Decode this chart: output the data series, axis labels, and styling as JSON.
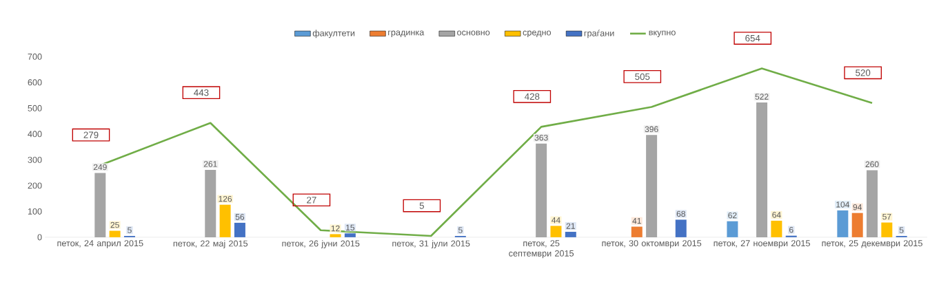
{
  "chart_data": {
    "type": "bar",
    "categories": [
      "петок, 24 април 2015",
      "петок, 22 мај 2015",
      "петок, 26 јуни 2015",
      "петок, 31 јули 2015",
      "петок, 25 септември 2015",
      "петок, 30 октомври 2015",
      "петок, 27 ноември 2015",
      "петок, 25 декември 2015"
    ],
    "series": [
      {
        "name": "факултети",
        "color": "#5b9bd5",
        "values": [
          0,
          0,
          0,
          0,
          0,
          0,
          62,
          104
        ],
        "value_labels": [
          null,
          null,
          null,
          null,
          null,
          null,
          "62",
          "104"
        ]
      },
      {
        "name": "градинка",
        "color": "#ed7d31",
        "values": [
          0,
          0,
          0,
          0,
          0,
          41,
          0,
          94
        ],
        "value_labels": [
          null,
          null,
          null,
          null,
          null,
          "41",
          null,
          "94"
        ]
      },
      {
        "name": "основно",
        "color": "#a5a5a5",
        "values": [
          249,
          261,
          0,
          0,
          363,
          396,
          522,
          260
        ],
        "value_labels": [
          "249",
          "261",
          null,
          null,
          "363",
          "396",
          "522",
          "260"
        ]
      },
      {
        "name": "средно",
        "color": "#ffc000",
        "values": [
          25,
          126,
          12,
          0,
          44,
          0,
          64,
          57
        ],
        "value_labels": [
          "25",
          "126",
          "12",
          null,
          "44",
          null,
          "64",
          "57"
        ]
      },
      {
        "name": "граѓани",
        "color": "#4472c4",
        "values": [
          5,
          56,
          15,
          5,
          21,
          68,
          6,
          5
        ],
        "value_labels": [
          "5",
          "56",
          "15",
          "5",
          "21",
          "68",
          "6",
          "5"
        ]
      },
      {
        "name": "вкупно",
        "type": "line",
        "color": "#70ad47",
        "values": [
          279,
          443,
          27,
          5,
          428,
          505,
          654,
          520
        ],
        "value_labels": [
          "279",
          "443",
          "27",
          "5",
          "428",
          "505",
          "654",
          "520"
        ]
      }
    ],
    "ylim": [
      0,
      700
    ],
    "yticks": [
      0,
      100,
      200,
      300,
      400,
      500,
      600,
      700
    ],
    "legend": "top"
  }
}
